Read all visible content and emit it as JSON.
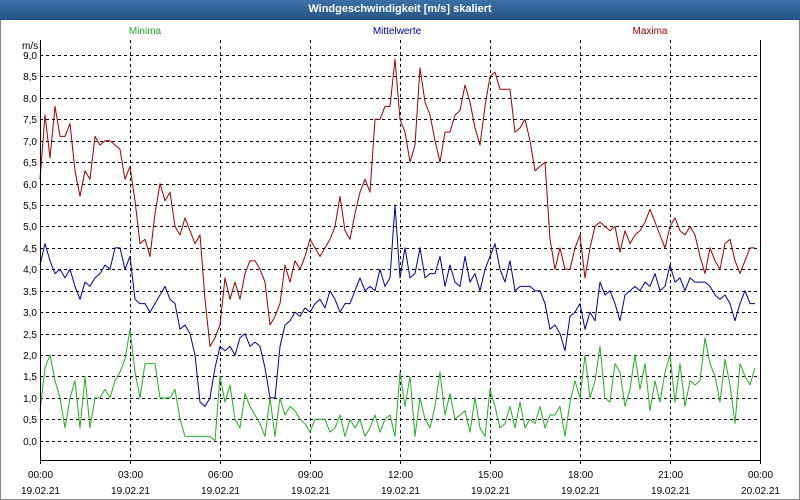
{
  "chart_data": {
    "type": "line",
    "title": "Windgeschwindigkeit [m/s] skaliert",
    "xlabel": "",
    "ylabel": "m/s",
    "ylim": [
      -0.45,
      9.35
    ],
    "grid": true,
    "legend": "top",
    "y_tick_labels": [
      "0,0",
      "0,5",
      "1,0",
      "1,5",
      "2,0",
      "2,5",
      "3,0",
      "3,5",
      "4,0",
      "4,5",
      "5,0",
      "5,5",
      "6,0",
      "6,5",
      "7,0",
      "7,5",
      "8,0",
      "8,5",
      "9,0"
    ],
    "x_ticks": [
      {
        "time": "00:00",
        "date": "19.02.21"
      },
      {
        "time": "03:00",
        "date": "19.02.21"
      },
      {
        "time": "06:00",
        "date": "19.02.21"
      },
      {
        "time": "09:00",
        "date": "19.02.21"
      },
      {
        "time": "12:00",
        "date": "19.02.21"
      },
      {
        "time": "15:00",
        "date": "19.02.21"
      },
      {
        "time": "18:00",
        "date": "19.02.21"
      },
      {
        "time": "21:00",
        "date": "19.02.21"
      },
      {
        "time": "00:00",
        "date": "20.02.21"
      }
    ],
    "x": [
      "00:00",
      "00:10",
      "00:20",
      "00:30",
      "00:40",
      "00:50",
      "01:00",
      "01:10",
      "01:20",
      "01:30",
      "01:40",
      "01:50",
      "02:00",
      "02:10",
      "02:20",
      "02:30",
      "02:40",
      "02:50",
      "03:00",
      "03:10",
      "03:20",
      "03:30",
      "03:40",
      "03:50",
      "04:00",
      "04:10",
      "04:20",
      "04:30",
      "04:40",
      "04:50",
      "05:00",
      "05:10",
      "05:20",
      "05:30",
      "05:40",
      "05:50",
      "06:00",
      "06:10",
      "06:20",
      "06:30",
      "06:40",
      "06:50",
      "07:00",
      "07:10",
      "07:20",
      "07:30",
      "07:40",
      "07:50",
      "08:00",
      "08:10",
      "08:20",
      "08:30",
      "08:40",
      "08:50",
      "09:00",
      "09:10",
      "09:20",
      "09:30",
      "09:40",
      "09:50",
      "10:00",
      "10:10",
      "10:20",
      "10:30",
      "10:40",
      "10:50",
      "11:00",
      "11:10",
      "11:20",
      "11:30",
      "11:40",
      "11:50",
      "12:00",
      "12:10",
      "12:20",
      "12:30",
      "12:40",
      "12:50",
      "13:00",
      "13:10",
      "13:20",
      "13:30",
      "13:40",
      "13:50",
      "14:00",
      "14:10",
      "14:20",
      "14:30",
      "14:40",
      "14:50",
      "15:00",
      "15:10",
      "15:20",
      "15:30",
      "15:40",
      "15:50",
      "16:00",
      "16:10",
      "16:20",
      "16:30",
      "16:40",
      "16:50",
      "17:00",
      "17:10",
      "17:20",
      "17:30",
      "17:40",
      "17:50",
      "18:00",
      "18:10",
      "18:20",
      "18:30",
      "18:40",
      "18:50",
      "19:00",
      "19:10",
      "19:20",
      "19:30",
      "19:40",
      "19:50",
      "20:00",
      "20:10",
      "20:20",
      "20:30",
      "20:40",
      "20:50",
      "21:00",
      "21:10",
      "21:20",
      "21:30",
      "21:40",
      "21:50",
      "22:00",
      "22:10",
      "22:20",
      "22:30",
      "22:40",
      "22:50",
      "23:00",
      "23:10",
      "23:20",
      "23:30",
      "23:40",
      "23:50"
    ],
    "series": [
      {
        "name": "Minima",
        "color": "#22b022",
        "values": [
          0.7,
          1.7,
          2.0,
          1.4,
          1.0,
          0.3,
          1.0,
          1.4,
          0.3,
          1.5,
          0.3,
          1.0,
          1.0,
          1.2,
          1.0,
          1.4,
          1.6,
          1.9,
          2.6,
          1.6,
          1.0,
          1.8,
          1.8,
          1.8,
          1.0,
          1.0,
          1.0,
          1.2,
          0.5,
          0.1,
          0.1,
          0.1,
          0.1,
          0.1,
          0.1,
          0.0,
          1.5,
          0.9,
          1.3,
          0.5,
          0.3,
          1.1,
          0.8,
          0.6,
          0.4,
          0.1,
          1.0,
          0.1,
          1.0,
          0.6,
          0.8,
          0.7,
          0.5,
          0.4,
          0.2,
          0.5,
          0.5,
          0.5,
          0.2,
          0.3,
          0.6,
          0.1,
          0.5,
          0.3,
          0.5,
          0.1,
          0.3,
          0.6,
          0.2,
          0.5,
          0.6,
          0.1,
          1.6,
          0.8,
          1.5,
          0.1,
          1.0,
          0.5,
          0.3,
          0.8,
          1.6,
          0.6,
          1.1,
          0.5,
          0.6,
          0.7,
          0.2,
          1.0,
          0.3,
          0.1,
          1.2,
          0.8,
          0.3,
          0.4,
          0.8,
          0.3,
          0.9,
          0.3,
          0.5,
          0.4,
          0.8,
          0.3,
          0.6,
          0.6,
          0.8,
          0.1,
          0.9,
          1.4,
          1.0,
          2.0,
          1.0,
          1.4,
          2.2,
          1.0,
          0.9,
          1.8,
          1.6,
          0.8,
          1.2,
          2.0,
          1.2,
          1.8,
          0.7,
          1.4,
          0.9,
          1.6,
          2.0,
          0.9,
          1.8,
          0.8,
          1.4,
          1.3,
          1.4,
          2.4,
          1.8,
          1.5,
          0.9,
          1.9,
          1.3,
          0.4,
          1.8,
          1.5,
          1.3,
          1.7
        ]
      },
      {
        "name": "Mittelwerte",
        "color": "#0000a0",
        "values": [
          4.1,
          4.6,
          4.2,
          3.9,
          4.0,
          3.8,
          4.0,
          3.6,
          3.3,
          3.7,
          3.6,
          3.8,
          3.9,
          4.1,
          4.0,
          4.5,
          4.5,
          4.0,
          4.3,
          3.3,
          3.2,
          3.2,
          3.0,
          3.2,
          3.4,
          3.6,
          3.3,
          3.2,
          2.6,
          2.7,
          2.5,
          2.0,
          0.9,
          0.8,
          1.0,
          1.7,
          2.2,
          2.1,
          2.2,
          2.0,
          2.4,
          2.5,
          2.2,
          2.3,
          2.2,
          1.7,
          1.0,
          1.0,
          2.2,
          2.7,
          2.8,
          3.0,
          2.9,
          3.1,
          3.0,
          3.2,
          3.3,
          3.1,
          3.5,
          3.3,
          3.0,
          3.2,
          3.2,
          3.5,
          3.8,
          3.5,
          3.6,
          3.5,
          4.0,
          3.6,
          3.8,
          5.5,
          3.8,
          4.5,
          3.8,
          3.9,
          4.5,
          3.8,
          3.9,
          3.9,
          4.3,
          3.6,
          4.1,
          3.7,
          3.6,
          4.3,
          3.7,
          3.9,
          3.5,
          4.0,
          4.3,
          4.6,
          4.0,
          3.7,
          4.2,
          3.5,
          3.6,
          3.6,
          3.6,
          3.5,
          3.5,
          3.2,
          2.6,
          2.7,
          2.5,
          2.1,
          2.9,
          3.0,
          3.2,
          2.6,
          3.0,
          2.8,
          3.7,
          3.4,
          3.5,
          3.2,
          2.8,
          3.4,
          3.5,
          3.6,
          3.5,
          3.7,
          3.6,
          3.9,
          3.5,
          3.6,
          4.1,
          3.7,
          3.8,
          3.5,
          3.8,
          3.7,
          3.7,
          3.7,
          3.6,
          3.4,
          3.3,
          3.4,
          3.2,
          2.8,
          3.2,
          3.5,
          3.2,
          3.2
        ]
      },
      {
        "name": "Maxima",
        "color": "#a00000",
        "values": [
          6.1,
          7.6,
          6.6,
          7.8,
          7.1,
          7.1,
          7.4,
          6.3,
          5.7,
          6.3,
          6.1,
          7.1,
          6.9,
          7.0,
          7.0,
          6.9,
          6.8,
          6.1,
          6.4,
          5.6,
          4.6,
          4.7,
          4.3,
          5.3,
          6.0,
          5.6,
          5.8,
          5.0,
          4.8,
          5.2,
          4.9,
          4.6,
          4.8,
          3.3,
          2.2,
          2.4,
          2.7,
          3.8,
          3.3,
          3.7,
          3.3,
          3.9,
          4.2,
          4.2,
          4.0,
          3.7,
          2.7,
          2.9,
          3.2,
          4.1,
          3.7,
          4.2,
          4.0,
          4.3,
          4.7,
          4.5,
          4.3,
          4.5,
          4.7,
          5.0,
          5.7,
          4.9,
          4.7,
          5.3,
          5.8,
          6.1,
          5.8,
          7.5,
          7.5,
          7.8,
          7.8,
          8.9,
          7.5,
          7.2,
          6.5,
          6.9,
          8.7,
          7.9,
          7.6,
          7.0,
          6.5,
          7.2,
          7.2,
          7.6,
          7.7,
          8.3,
          7.9,
          7.3,
          6.9,
          7.8,
          8.5,
          8.6,
          8.2,
          8.2,
          8.2,
          7.2,
          7.3,
          7.5,
          7.0,
          6.3,
          6.4,
          6.5,
          4.7,
          4.0,
          4.5,
          4.0,
          4.0,
          4.5,
          4.8,
          3.8,
          4.5,
          5.0,
          5.1,
          5.0,
          4.9,
          5.0,
          4.4,
          4.9,
          4.6,
          4.8,
          4.9,
          5.1,
          5.4,
          5.1,
          4.8,
          4.5,
          5.0,
          5.2,
          4.9,
          4.8,
          5.0,
          4.8,
          4.3,
          3.9,
          4.5,
          4.2,
          4.0,
          4.6,
          4.7,
          4.2,
          3.9,
          4.2,
          4.5,
          4.5
        ]
      }
    ]
  }
}
